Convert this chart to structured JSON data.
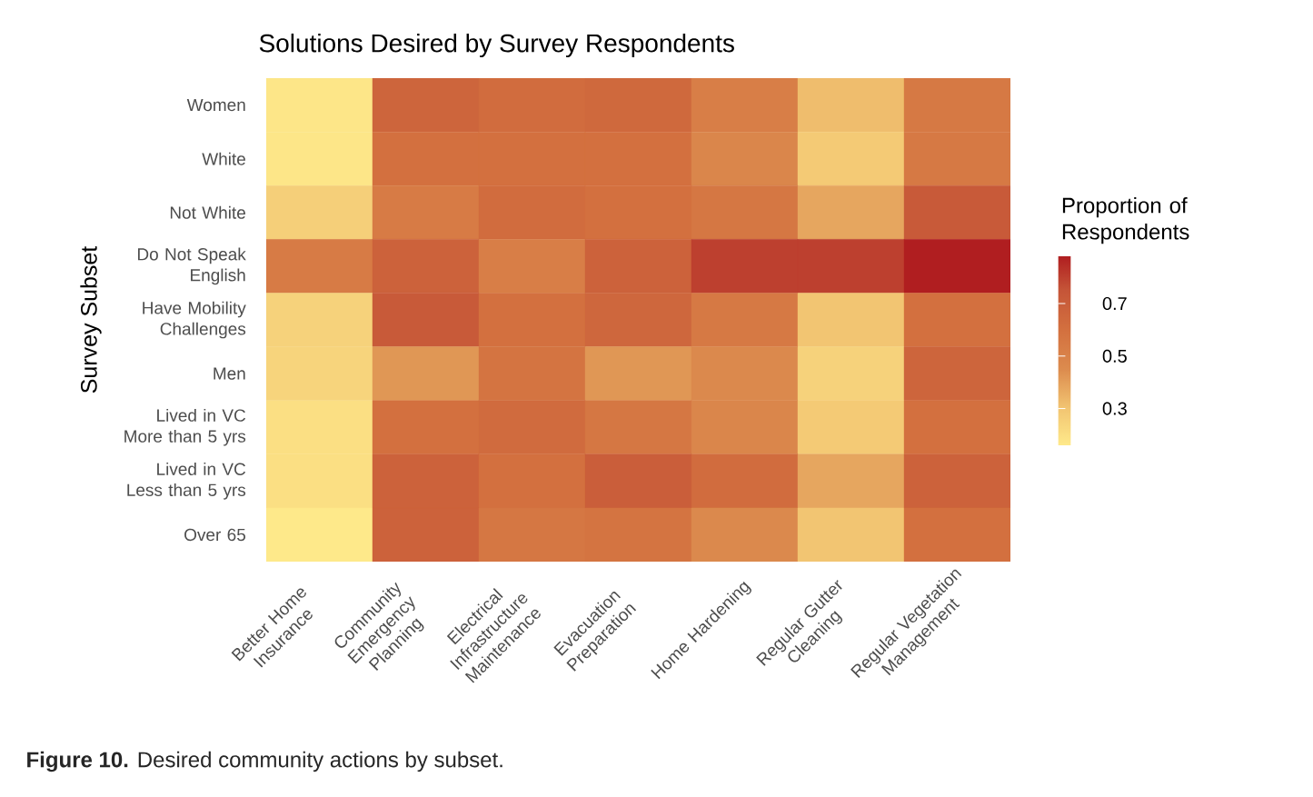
{
  "chart_data": {
    "type": "heatmap",
    "title": "Solutions Desired by Survey Respondents",
    "ylabel": "Survey Subset",
    "clabel": "Proportion of Respondents",
    "categories": [
      "Better Home Insurance",
      "Community Emergency Planning",
      "Electrical Infrastructure Maintenance",
      "Evacuation Preparation",
      "Home Hardening",
      "Regular Gutter Cleaning",
      "Regular Vegetation Management"
    ],
    "y_categories": [
      "Women",
      "White",
      "Not White",
      "Do Not Speak English",
      "Have Mobility Challenges",
      "Men",
      "Lived in VC More than 5 yrs",
      "Lived in VC Less than 5 yrs",
      "Over 65"
    ],
    "cells": [
      [
        0.17,
        0.66,
        0.62,
        0.64,
        0.52,
        0.32,
        0.55
      ],
      [
        0.17,
        0.6,
        0.6,
        0.6,
        0.48,
        0.28,
        0.55
      ],
      [
        0.26,
        0.54,
        0.62,
        0.6,
        0.56,
        0.38,
        0.72
      ],
      [
        0.54,
        0.68,
        0.52,
        0.68,
        0.8,
        0.8,
        0.88
      ],
      [
        0.25,
        0.72,
        0.6,
        0.65,
        0.55,
        0.3,
        0.6
      ],
      [
        0.24,
        0.42,
        0.58,
        0.42,
        0.46,
        0.25,
        0.66
      ],
      [
        0.2,
        0.6,
        0.63,
        0.56,
        0.48,
        0.28,
        0.6
      ],
      [
        0.2,
        0.68,
        0.6,
        0.7,
        0.62,
        0.38,
        0.68
      ],
      [
        0.16,
        0.68,
        0.56,
        0.58,
        0.46,
        0.3,
        0.6
      ]
    ],
    "clim": [
      0.16,
      0.88
    ],
    "cticks": [
      0.3,
      0.5,
      0.7
    ],
    "annotations": [
      "**Figure 10.** Desired community actions by subset."
    ]
  }
}
